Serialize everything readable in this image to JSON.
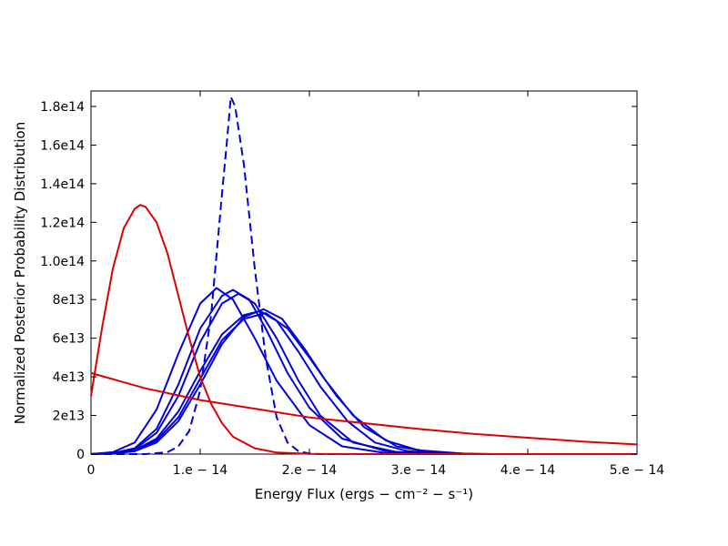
{
  "chart_data": {
    "type": "line",
    "xlabel": "Energy Flux (ergs − cm⁻² − s⁻¹)",
    "ylabel": "Normalized Posterior Probability Distribution",
    "xlim": [
      0,
      5e-14
    ],
    "ylim": [
      0,
      188000000000000.0
    ],
    "x_ticks": [
      {
        "value": 0,
        "label": "0"
      },
      {
        "value": 1e-14,
        "label": "1.e − 14"
      },
      {
        "value": 2e-14,
        "label": "2.e − 14"
      },
      {
        "value": 3e-14,
        "label": "3.e − 14"
      },
      {
        "value": 4e-14,
        "label": "4.e − 14"
      },
      {
        "value": 5e-14,
        "label": "5.e − 14"
      }
    ],
    "y_ticks": [
      {
        "value": 0,
        "label": "0"
      },
      {
        "value": 20000000000000.0,
        "label": "2e13"
      },
      {
        "value": 40000000000000.0,
        "label": "4e13"
      },
      {
        "value": 60000000000000.0,
        "label": "6e13"
      },
      {
        "value": 80000000000000.0,
        "label": "8e13"
      },
      {
        "value": 100000000000000.0,
        "label": "1.0e14"
      },
      {
        "value": 120000000000000.0,
        "label": "1.2e14"
      },
      {
        "value": 140000000000000.0,
        "label": "1.4e14"
      },
      {
        "value": 160000000000000.0,
        "label": "1.6e14"
      },
      {
        "value": 180000000000000.0,
        "label": "1.8e14"
      }
    ],
    "grid": false,
    "series": [
      {
        "color": "#0000dd",
        "dash": "solid",
        "points": [
          [
            0,
            0
          ],
          [
            2e-15,
            1000000000000.0
          ],
          [
            4e-15,
            6000000000000.0
          ],
          [
            6e-15,
            23000000000000.0
          ],
          [
            8e-15,
            52000000000000.0
          ],
          [
            1e-14,
            78000000000000.0
          ],
          [
            1.15e-14,
            86000000000000.0
          ],
          [
            1.3e-14,
            80000000000000.0
          ],
          [
            1.5e-14,
            60000000000000.0
          ],
          [
            1.7e-14,
            38000000000000.0
          ],
          [
            2e-14,
            15000000000000.0
          ],
          [
            2.3e-14,
            4000000000000.0
          ],
          [
            2.7e-14,
            500000000000.0
          ],
          [
            3e-14,
            0
          ],
          [
            5e-14,
            0
          ]
        ]
      },
      {
        "color": "#0000dd",
        "dash": "solid",
        "points": [
          [
            0,
            0
          ],
          [
            2e-15,
            500000000000.0
          ],
          [
            4e-15,
            3000000000000.0
          ],
          [
            6e-15,
            13000000000000.0
          ],
          [
            8e-15,
            36000000000000.0
          ],
          [
            1e-14,
            65000000000000.0
          ],
          [
            1.2e-14,
            82000000000000.0
          ],
          [
            1.3e-14,
            85000000000000.0
          ],
          [
            1.45e-14,
            80000000000000.0
          ],
          [
            1.6e-14,
            65000000000000.0
          ],
          [
            1.8e-14,
            42000000000000.0
          ],
          [
            2e-14,
            24000000000000.0
          ],
          [
            2.3e-14,
            8000000000000.0
          ],
          [
            2.7e-14,
            1500000000000.0
          ],
          [
            3.1e-14,
            0
          ],
          [
            5e-14,
            0
          ]
        ]
      },
      {
        "color": "#0000dd",
        "dash": "solid",
        "points": [
          [
            0,
            0
          ],
          [
            2e-15,
            500000000000.0
          ],
          [
            4e-15,
            2500000000000.0
          ],
          [
            6e-15,
            11000000000000.0
          ],
          [
            8e-15,
            30000000000000.0
          ],
          [
            1e-14,
            58000000000000.0
          ],
          [
            1.2e-14,
            78000000000000.0
          ],
          [
            1.35e-14,
            83000000000000.0
          ],
          [
            1.5e-14,
            78000000000000.0
          ],
          [
            1.7e-14,
            60000000000000.0
          ],
          [
            1.9e-14,
            38000000000000.0
          ],
          [
            2.1e-14,
            20000000000000.0
          ],
          [
            2.4e-14,
            6000000000000.0
          ],
          [
            2.8e-14,
            1000000000000.0
          ],
          [
            3.2e-14,
            0
          ],
          [
            5e-14,
            0
          ]
        ]
      },
      {
        "color": "#0000dd",
        "dash": "solid",
        "points": [
          [
            0,
            0
          ],
          [
            2e-15,
            300000000000.0
          ],
          [
            4e-15,
            1500000000000.0
          ],
          [
            6e-15,
            6000000000000.0
          ],
          [
            8e-15,
            17000000000000.0
          ],
          [
            1e-14,
            36000000000000.0
          ],
          [
            1.2e-14,
            57000000000000.0
          ],
          [
            1.4e-14,
            71000000000000.0
          ],
          [
            1.58e-14,
            75000000000000.0
          ],
          [
            1.75e-14,
            70000000000000.0
          ],
          [
            1.95e-14,
            55000000000000.0
          ],
          [
            2.15e-14,
            38000000000000.0
          ],
          [
            2.4e-14,
            20000000000000.0
          ],
          [
            2.7e-14,
            7000000000000.0
          ],
          [
            3e-14,
            2000000000000.0
          ],
          [
            3.4e-14,
            300000000000.0
          ],
          [
            3.7e-14,
            0
          ],
          [
            5e-14,
            0
          ]
        ]
      },
      {
        "color": "#0000dd",
        "dash": "solid",
        "points": [
          [
            0,
            0
          ],
          [
            2e-15,
            300000000000.0
          ],
          [
            4e-15,
            2000000000000.0
          ],
          [
            6e-15,
            8000000000000.0
          ],
          [
            8e-15,
            22000000000000.0
          ],
          [
            1e-14,
            43000000000000.0
          ],
          [
            1.2e-14,
            62000000000000.0
          ],
          [
            1.4e-14,
            72000000000000.0
          ],
          [
            1.55e-14,
            74000000000000.0
          ],
          [
            1.7e-14,
            69000000000000.0
          ],
          [
            1.9e-14,
            53000000000000.0
          ],
          [
            2.1e-14,
            35000000000000.0
          ],
          [
            2.35e-14,
            17000000000000.0
          ],
          [
            2.6e-14,
            6000000000000.0
          ],
          [
            2.9e-14,
            1500000000000.0
          ],
          [
            3.3e-14,
            0
          ],
          [
            5e-14,
            0
          ]
        ]
      },
      {
        "color": "#0000dd",
        "dash": "solid",
        "points": [
          [
            0,
            0
          ],
          [
            2e-15,
            300000000000.0
          ],
          [
            4e-15,
            1500000000000.0
          ],
          [
            6e-15,
            7000000000000.0
          ],
          [
            8e-15,
            19000000000000.0
          ],
          [
            1e-14,
            39000000000000.0
          ],
          [
            1.2e-14,
            59000000000000.0
          ],
          [
            1.4e-14,
            70000000000000.0
          ],
          [
            1.6e-14,
            73000000000000.0
          ],
          [
            1.8e-14,
            65000000000000.0
          ],
          [
            2e-14,
            50000000000000.0
          ],
          [
            2.25e-14,
            30000000000000.0
          ],
          [
            2.5e-14,
            14000000000000.0
          ],
          [
            2.8e-14,
            4000000000000.0
          ],
          [
            3.1e-14,
            1000000000000.0
          ],
          [
            3.5e-14,
            0
          ],
          [
            5e-14,
            0
          ]
        ]
      },
      {
        "color": "#0000dd",
        "dash": "dashed",
        "points": [
          [
            0,
            0
          ],
          [
            5e-15,
            0
          ],
          [
            7e-15,
            1000000000000.0
          ],
          [
            8e-15,
            4000000000000.0
          ],
          [
            9e-15,
            12000000000000.0
          ],
          [
            1e-14,
            33000000000000.0
          ],
          [
            1.1e-14,
            72000000000000.0
          ],
          [
            1.2e-14,
            135000000000000.0
          ],
          [
            1.25e-14,
            165000000000000.0
          ],
          [
            1.28e-14,
            185000000000000.0
          ],
          [
            1.32e-14,
            180000000000000.0
          ],
          [
            1.4e-14,
            150000000000000.0
          ],
          [
            1.5e-14,
            96000000000000.0
          ],
          [
            1.6e-14,
            50000000000000.0
          ],
          [
            1.7e-14,
            19000000000000.0
          ],
          [
            1.8e-14,
            6000000000000.0
          ],
          [
            1.9e-14,
            1500000000000.0
          ],
          [
            2e-14,
            300000000000.0
          ],
          [
            2.1e-14,
            0
          ],
          [
            5e-14,
            0
          ]
        ]
      },
      {
        "color": "#dd0000",
        "dash": "solid",
        "points": [
          [
            0,
            30000000000000.0
          ],
          [
            1e-15,
            65000000000000.0
          ],
          [
            2e-15,
            96000000000000.0
          ],
          [
            3e-15,
            117000000000000.0
          ],
          [
            4e-15,
            127000000000000.0
          ],
          [
            4.5e-15,
            129000000000000.0
          ],
          [
            5e-15,
            128000000000000.0
          ],
          [
            6e-15,
            120000000000000.0
          ],
          [
            7e-15,
            104000000000000.0
          ],
          [
            8e-15,
            82000000000000.0
          ],
          [
            9e-15,
            60000000000000.0
          ],
          [
            1e-14,
            40000000000000.0
          ],
          [
            1.1e-14,
            26000000000000.0
          ],
          [
            1.2e-14,
            16000000000000.0
          ],
          [
            1.3e-14,
            9000000000000.0
          ],
          [
            1.5e-14,
            3000000000000.0
          ],
          [
            1.7e-14,
            800000000000.0
          ],
          [
            2e-14,
            100000000000.0
          ],
          [
            2.5e-14,
            0
          ],
          [
            5e-14,
            0
          ]
        ]
      },
      {
        "color": "#dd0000",
        "dash": "solid",
        "points": [
          [
            0,
            42000000000000.0
          ],
          [
            5e-15,
            34000000000000.0
          ],
          [
            1e-14,
            28000000000000.0
          ],
          [
            1.5e-14,
            23500000000000.0
          ],
          [
            2e-14,
            19000000000000.0
          ],
          [
            2.5e-14,
            16000000000000.0
          ],
          [
            3e-14,
            13000000000000.0
          ],
          [
            3.5e-14,
            10500000000000.0
          ],
          [
            4e-14,
            8500000000000.0
          ],
          [
            4.5e-14,
            6500000000000.0
          ],
          [
            5e-14,
            5000000000000.0
          ]
        ]
      }
    ]
  }
}
